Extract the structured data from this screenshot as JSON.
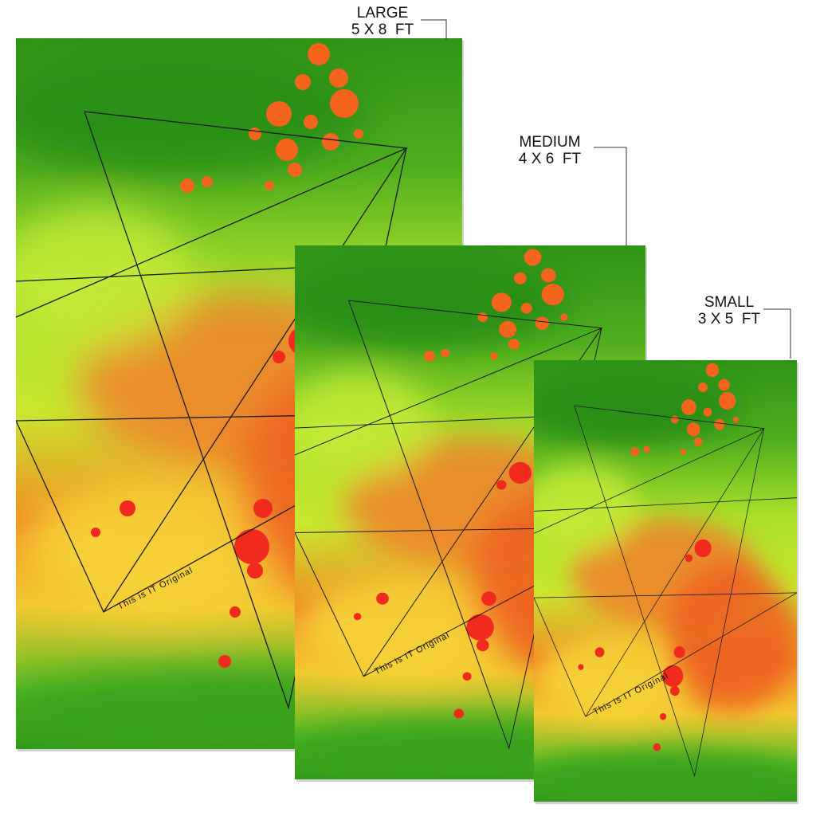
{
  "rugs": [
    {
      "size": "LARGE",
      "dimensions": "5 X 8  FT",
      "caption": "This is IT Original"
    },
    {
      "size": "MEDIUM",
      "dimensions": "4 X 6  FT",
      "caption": "This is IT Original"
    },
    {
      "size": "SMALL",
      "dimensions": "3 X 5  FT",
      "caption": "This is IT Original"
    }
  ]
}
